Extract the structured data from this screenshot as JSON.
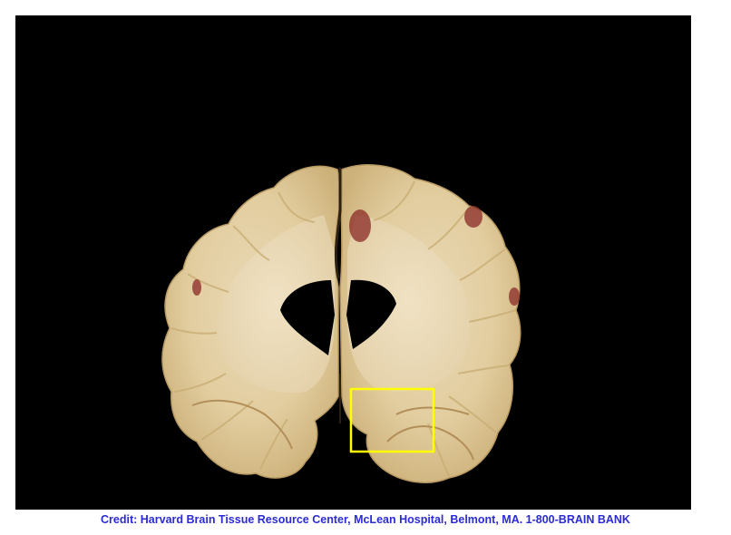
{
  "credit": {
    "text": "Credit: Harvard  Brain Tissue Resource Center, McLean Hospital, Belmont, MA. 1-800-BRAIN BANK",
    "color": "#2b2bd6"
  },
  "photo": {
    "subject": "brain-slice-photo",
    "background_color": "#000000",
    "highlight_box_color": "#ffff00"
  }
}
